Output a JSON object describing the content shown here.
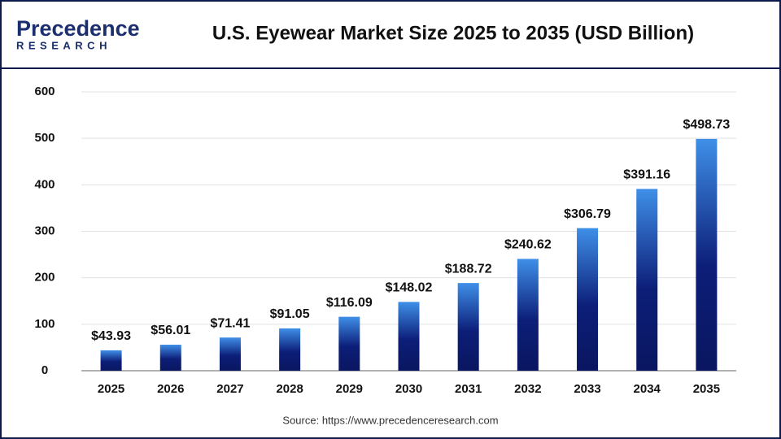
{
  "logo": {
    "name": "Precedence",
    "tagline": "RESEARCH"
  },
  "chart_data": {
    "type": "bar",
    "title": "U.S. Eyewear Market Size 2025 to 2035 (USD Billion)",
    "categories": [
      "2025",
      "2026",
      "2027",
      "2028",
      "2029",
      "2030",
      "2031",
      "2032",
      "2033",
      "2034",
      "2035"
    ],
    "values": [
      43.93,
      56.01,
      71.41,
      91.05,
      116.09,
      148.02,
      188.72,
      240.62,
      306.79,
      391.16,
      498.73
    ],
    "value_labels": [
      "$43.93",
      "$56.01",
      "$71.41",
      "$91.05",
      "$116.09",
      "$148.02",
      "$188.72",
      "$240.62",
      "$306.79",
      "$391.16",
      "$498.73"
    ],
    "color": "#1d3a9e",
    "ylim": [
      0,
      600
    ],
    "yticks": [
      0,
      100,
      200,
      300,
      400,
      500,
      600
    ],
    "grid": true,
    "source": "Source: https://www.precedenceresearch.com"
  }
}
